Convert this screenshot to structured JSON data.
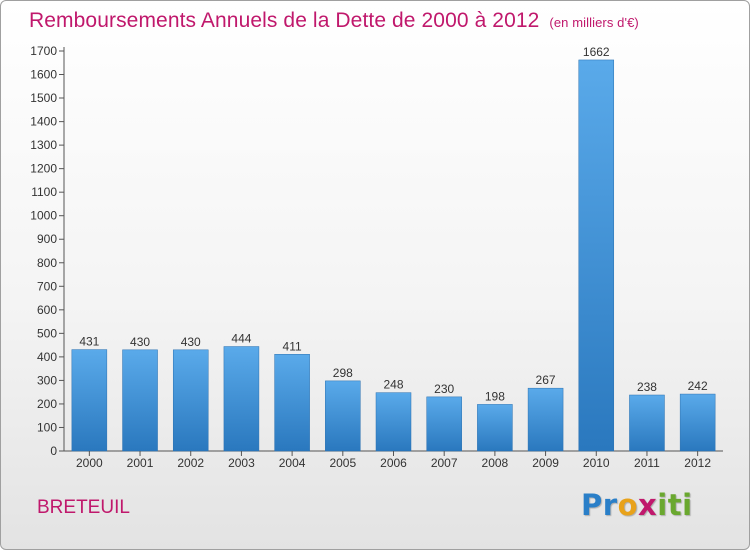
{
  "chart_data": {
    "type": "bar",
    "title": "Remboursements Annuels de la Dette de 2000 à 2012",
    "subtitle": "(en milliers d'€)",
    "categories": [
      "2000",
      "2001",
      "2002",
      "2003",
      "2004",
      "2005",
      "2006",
      "2007",
      "2008",
      "2009",
      "2010",
      "2011",
      "2012"
    ],
    "values": [
      431,
      430,
      430,
      444,
      411,
      298,
      248,
      230,
      198,
      267,
      1662,
      238,
      242
    ],
    "ylim": [
      0,
      1700
    ],
    "yticks": [
      0,
      100,
      200,
      300,
      400,
      500,
      600,
      700,
      800,
      900,
      1000,
      1100,
      1200,
      1300,
      1400,
      1500,
      1600,
      1700
    ],
    "grid": false,
    "xlabel": "",
    "ylabel": "",
    "bar_color": "#3a8fd6",
    "title_color": "#c0186c"
  },
  "footer": {
    "commune": "BRETEUIL",
    "logo_letters": [
      "P",
      "r",
      "o",
      "x",
      "i",
      "t",
      "i"
    ],
    "logo_colors": [
      "#2a7fc8",
      "#2a7fc8",
      "#e8a21a",
      "#c0186c",
      "#6aa82f",
      "#6aa82f",
      "#6aa82f"
    ]
  }
}
